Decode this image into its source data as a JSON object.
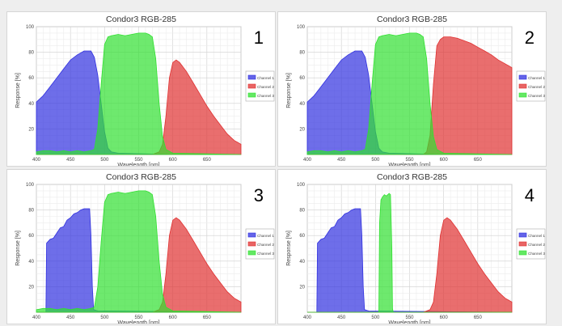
{
  "chart_data": [
    {
      "type": "area",
      "title": "Condor3 RGB-285",
      "panel_label": "1",
      "xlabel": "Wavelength [nm]",
      "ylabel": "Response [%]",
      "xlim": [
        400,
        700
      ],
      "ylim": [
        0,
        100
      ],
      "xticks": [
        400,
        450,
        500,
        550,
        600,
        650
      ],
      "yticks": [
        20,
        40,
        60,
        80,
        100
      ],
      "grid": true,
      "legend_position": "right",
      "series": [
        {
          "name": "Channel 1",
          "color": "#3030e0",
          "points": [
            [
              400,
              41
            ],
            [
              410,
              46
            ],
            [
              420,
              53
            ],
            [
              430,
              60
            ],
            [
              440,
              67
            ],
            [
              450,
              74
            ],
            [
              460,
              78
            ],
            [
              470,
              81
            ],
            [
              480,
              81
            ],
            [
              485,
              76
            ],
            [
              490,
              62
            ],
            [
              495,
              40
            ],
            [
              500,
              18
            ],
            [
              505,
              5
            ],
            [
              510,
              2
            ],
            [
              520,
              1
            ],
            [
              600,
              0
            ],
            [
              700,
              0
            ]
          ]
        },
        {
          "name": "Channel 2",
          "color": "#e03030",
          "points": [
            [
              400,
              0
            ],
            [
              570,
              0
            ],
            [
              580,
              2
            ],
            [
              585,
              8
            ],
            [
              590,
              30
            ],
            [
              595,
              60
            ],
            [
              600,
              72
            ],
            [
              605,
              74
            ],
            [
              610,
              72
            ],
            [
              620,
              65
            ],
            [
              630,
              56
            ],
            [
              640,
              47
            ],
            [
              650,
              38
            ],
            [
              660,
              30
            ],
            [
              670,
              23
            ],
            [
              680,
              16
            ],
            [
              690,
              11
            ],
            [
              700,
              8
            ]
          ]
        },
        {
          "name": "Channel 3",
          "color": "#30e030",
          "points": [
            [
              400,
              2
            ],
            [
              410,
              3
            ],
            [
              420,
              3
            ],
            [
              430,
              2
            ],
            [
              440,
              3
            ],
            [
              450,
              2
            ],
            [
              460,
              3
            ],
            [
              470,
              2
            ],
            [
              480,
              3
            ],
            [
              485,
              4
            ],
            [
              490,
              20
            ],
            [
              495,
              55
            ],
            [
              500,
              86
            ],
            [
              505,
              92
            ],
            [
              510,
              93
            ],
            [
              520,
              94
            ],
            [
              530,
              93
            ],
            [
              540,
              94
            ],
            [
              550,
              95
            ],
            [
              560,
              95
            ],
            [
              565,
              94
            ],
            [
              570,
              92
            ],
            [
              575,
              75
            ],
            [
              580,
              40
            ],
            [
              585,
              14
            ],
            [
              590,
              4
            ],
            [
              600,
              1
            ],
            [
              700,
              0
            ]
          ]
        }
      ]
    },
    {
      "type": "area",
      "title": "Condor3 RGB-285",
      "panel_label": "2",
      "xlabel": "Wavelength [nm]",
      "ylabel": "Response [%]",
      "xlim": [
        400,
        700
      ],
      "ylim": [
        0,
        100
      ],
      "xticks": [
        400,
        450,
        500,
        550,
        600,
        650
      ],
      "yticks": [
        20,
        40,
        60,
        80,
        100
      ],
      "grid": true,
      "legend_position": "right",
      "series": [
        {
          "name": "Channel 1",
          "color": "#3030e0",
          "points": [
            [
              400,
              41
            ],
            [
              410,
              46
            ],
            [
              420,
              53
            ],
            [
              430,
              60
            ],
            [
              440,
              67
            ],
            [
              450,
              74
            ],
            [
              460,
              78
            ],
            [
              470,
              81
            ],
            [
              480,
              81
            ],
            [
              485,
              76
            ],
            [
              490,
              62
            ],
            [
              495,
              40
            ],
            [
              500,
              18
            ],
            [
              505,
              5
            ],
            [
              510,
              2
            ],
            [
              520,
              1
            ],
            [
              600,
              0
            ],
            [
              700,
              0
            ]
          ]
        },
        {
          "name": "Channel 2",
          "color": "#e03030",
          "points": [
            [
              400,
              0
            ],
            [
              570,
              0
            ],
            [
              575,
              2
            ],
            [
              580,
              15
            ],
            [
              585,
              55
            ],
            [
              590,
              85
            ],
            [
              595,
              90
            ],
            [
              600,
              92
            ],
            [
              610,
              92
            ],
            [
              620,
              91
            ],
            [
              630,
              89
            ],
            [
              640,
              87
            ],
            [
              650,
              84
            ],
            [
              660,
              81
            ],
            [
              670,
              78
            ],
            [
              680,
              74
            ],
            [
              690,
              71
            ],
            [
              700,
              68
            ]
          ]
        },
        {
          "name": "Channel 3",
          "color": "#30e030",
          "points": [
            [
              400,
              2
            ],
            [
              410,
              3
            ],
            [
              420,
              3
            ],
            [
              430,
              2
            ],
            [
              440,
              3
            ],
            [
              450,
              2
            ],
            [
              460,
              3
            ],
            [
              470,
              2
            ],
            [
              480,
              3
            ],
            [
              485,
              4
            ],
            [
              490,
              20
            ],
            [
              495,
              55
            ],
            [
              500,
              86
            ],
            [
              505,
              92
            ],
            [
              510,
              93
            ],
            [
              520,
              94
            ],
            [
              530,
              93
            ],
            [
              540,
              94
            ],
            [
              550,
              95
            ],
            [
              560,
              95
            ],
            [
              565,
              94
            ],
            [
              570,
              92
            ],
            [
              575,
              75
            ],
            [
              580,
              40
            ],
            [
              585,
              14
            ],
            [
              590,
              4
            ],
            [
              600,
              1
            ],
            [
              700,
              0
            ]
          ]
        }
      ]
    },
    {
      "type": "area",
      "title": "Condor3 RGB-285",
      "panel_label": "3",
      "xlabel": "Wavelength [nm]",
      "ylabel": "Response [%]",
      "xlim": [
        400,
        700
      ],
      "ylim": [
        0,
        100
      ],
      "xticks": [
        400,
        450,
        500,
        550,
        600,
        650
      ],
      "yticks": [
        20,
        40,
        60,
        80,
        100
      ],
      "grid": true,
      "legend_position": "right",
      "series": [
        {
          "name": "Channel 1",
          "color": "#3030e0",
          "points": [
            [
              400,
              0
            ],
            [
              414,
              0
            ],
            [
              415,
              54
            ],
            [
              420,
              57
            ],
            [
              425,
              58
            ],
            [
              430,
              62
            ],
            [
              435,
              66
            ],
            [
              440,
              67
            ],
            [
              445,
              72
            ],
            [
              450,
              74
            ],
            [
              455,
              77
            ],
            [
              460,
              78
            ],
            [
              465,
              80
            ],
            [
              470,
              81
            ],
            [
              475,
              81
            ],
            [
              478,
              81
            ],
            [
              480,
              60
            ],
            [
              482,
              20
            ],
            [
              484,
              2
            ],
            [
              490,
              1
            ],
            [
              700,
              0
            ]
          ]
        },
        {
          "name": "Channel 2",
          "color": "#e03030",
          "points": [
            [
              400,
              0
            ],
            [
              570,
              0
            ],
            [
              580,
              2
            ],
            [
              585,
              8
            ],
            [
              590,
              30
            ],
            [
              595,
              60
            ],
            [
              600,
              72
            ],
            [
              605,
              74
            ],
            [
              610,
              72
            ],
            [
              620,
              65
            ],
            [
              630,
              56
            ],
            [
              640,
              47
            ],
            [
              650,
              38
            ],
            [
              660,
              30
            ],
            [
              670,
              23
            ],
            [
              680,
              16
            ],
            [
              690,
              11
            ],
            [
              700,
              8
            ]
          ]
        },
        {
          "name": "Channel 3",
          "color": "#30e030",
          "points": [
            [
              400,
              2
            ],
            [
              410,
              3
            ],
            [
              420,
              3
            ],
            [
              430,
              2
            ],
            [
              440,
              3
            ],
            [
              450,
              2
            ],
            [
              460,
              3
            ],
            [
              470,
              2
            ],
            [
              480,
              3
            ],
            [
              485,
              4
            ],
            [
              490,
              20
            ],
            [
              495,
              55
            ],
            [
              500,
              86
            ],
            [
              505,
              92
            ],
            [
              510,
              93
            ],
            [
              520,
              94
            ],
            [
              530,
              93
            ],
            [
              540,
              94
            ],
            [
              550,
              95
            ],
            [
              560,
              95
            ],
            [
              565,
              94
            ],
            [
              570,
              92
            ],
            [
              575,
              75
            ],
            [
              580,
              40
            ],
            [
              585,
              14
            ],
            [
              590,
              4
            ],
            [
              600,
              1
            ],
            [
              700,
              0
            ]
          ]
        }
      ]
    },
    {
      "type": "area",
      "title": "Condor3 RGB-285",
      "panel_label": "4",
      "xlabel": "Wavelength [nm]",
      "ylabel": "Response [%]",
      "xlim": [
        400,
        700
      ],
      "ylim": [
        0,
        100
      ],
      "xticks": [
        400,
        450,
        500,
        550,
        600,
        650
      ],
      "yticks": [
        20,
        40,
        60,
        80,
        100
      ],
      "grid": true,
      "legend_position": "right",
      "series": [
        {
          "name": "Channel 1",
          "color": "#3030e0",
          "points": [
            [
              400,
              0
            ],
            [
              414,
              0
            ],
            [
              415,
              54
            ],
            [
              420,
              57
            ],
            [
              425,
              58
            ],
            [
              430,
              62
            ],
            [
              435,
              66
            ],
            [
              440,
              67
            ],
            [
              445,
              72
            ],
            [
              450,
              74
            ],
            [
              455,
              77
            ],
            [
              460,
              78
            ],
            [
              465,
              80
            ],
            [
              470,
              81
            ],
            [
              475,
              81
            ],
            [
              478,
              81
            ],
            [
              480,
              60
            ],
            [
              482,
              20
            ],
            [
              484,
              2
            ],
            [
              490,
              1
            ],
            [
              700,
              0
            ]
          ]
        },
        {
          "name": "Channel 2",
          "color": "#e03030",
          "points": [
            [
              400,
              0
            ],
            [
              570,
              0
            ],
            [
              580,
              2
            ],
            [
              585,
              8
            ],
            [
              590,
              30
            ],
            [
              595,
              60
            ],
            [
              600,
              72
            ],
            [
              605,
              74
            ],
            [
              610,
              72
            ],
            [
              620,
              65
            ],
            [
              630,
              56
            ],
            [
              640,
              47
            ],
            [
              650,
              38
            ],
            [
              660,
              30
            ],
            [
              670,
              23
            ],
            [
              680,
              16
            ],
            [
              690,
              11
            ],
            [
              700,
              8
            ]
          ]
        },
        {
          "name": "Channel 3",
          "color": "#30e030",
          "points": [
            [
              400,
              0
            ],
            [
              505,
              0
            ],
            [
              506,
              70
            ],
            [
              508,
              88
            ],
            [
              510,
              90
            ],
            [
              513,
              92
            ],
            [
              516,
              91
            ],
            [
              520,
              93
            ],
            [
              522,
              92
            ],
            [
              524,
              50
            ],
            [
              525,
              3
            ],
            [
              526,
              0
            ],
            [
              700,
              0
            ]
          ]
        }
      ]
    }
  ]
}
